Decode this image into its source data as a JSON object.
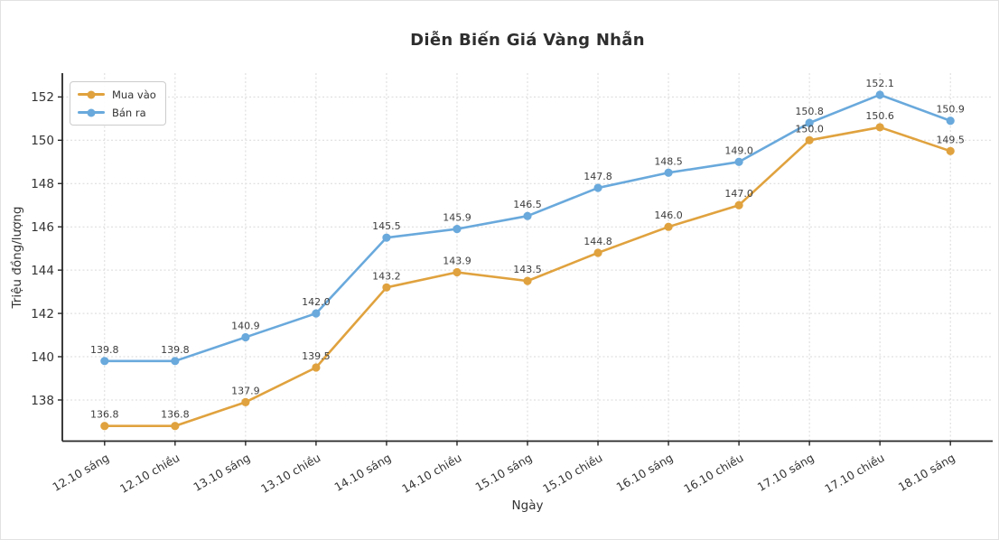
{
  "chart_data": {
    "type": "line",
    "title": "Diễn Biến Giá Vàng Nhẫn",
    "xlabel": "Ngày",
    "ylabel": "Triệu đồng/lượng",
    "categories": [
      "12.10 sáng",
      "12.10 chiều",
      "13.10 sáng",
      "13.10 chiều",
      "14.10 sáng",
      "14.10 chiều",
      "15.10 sáng",
      "15.10 chiều",
      "16.10 sáng",
      "16.10 chiều",
      "17.10 sáng",
      "17.10 chiều",
      "18.10 sáng"
    ],
    "series": [
      {
        "name": "Mua vào",
        "color": "#E0A23E",
        "values": [
          136.8,
          136.8,
          137.9,
          139.5,
          143.2,
          143.9,
          143.5,
          144.8,
          146.0,
          147.0,
          150.0,
          150.6,
          149.5
        ]
      },
      {
        "name": "Bán ra",
        "color": "#69A9DC",
        "values": [
          139.8,
          139.8,
          140.9,
          142.0,
          145.5,
          145.9,
          146.5,
          147.8,
          148.5,
          149.0,
          150.8,
          152.1,
          150.9
        ]
      }
    ],
    "yticks": [
      138,
      140,
      142,
      144,
      146,
      148,
      150,
      152
    ],
    "ylim": [
      136.1,
      153.1
    ],
    "grid": true,
    "grid_style": "dashed",
    "legend_position": "upper left",
    "data_labels": true,
    "label_format": "one_decimal",
    "x_tick_rotation": 30,
    "colors": {
      "grid": "#d9d9d9",
      "spine": "#262626",
      "tick_label": "#333333",
      "data_label": "#3c3c3c",
      "title": "#2e2e2e"
    }
  }
}
